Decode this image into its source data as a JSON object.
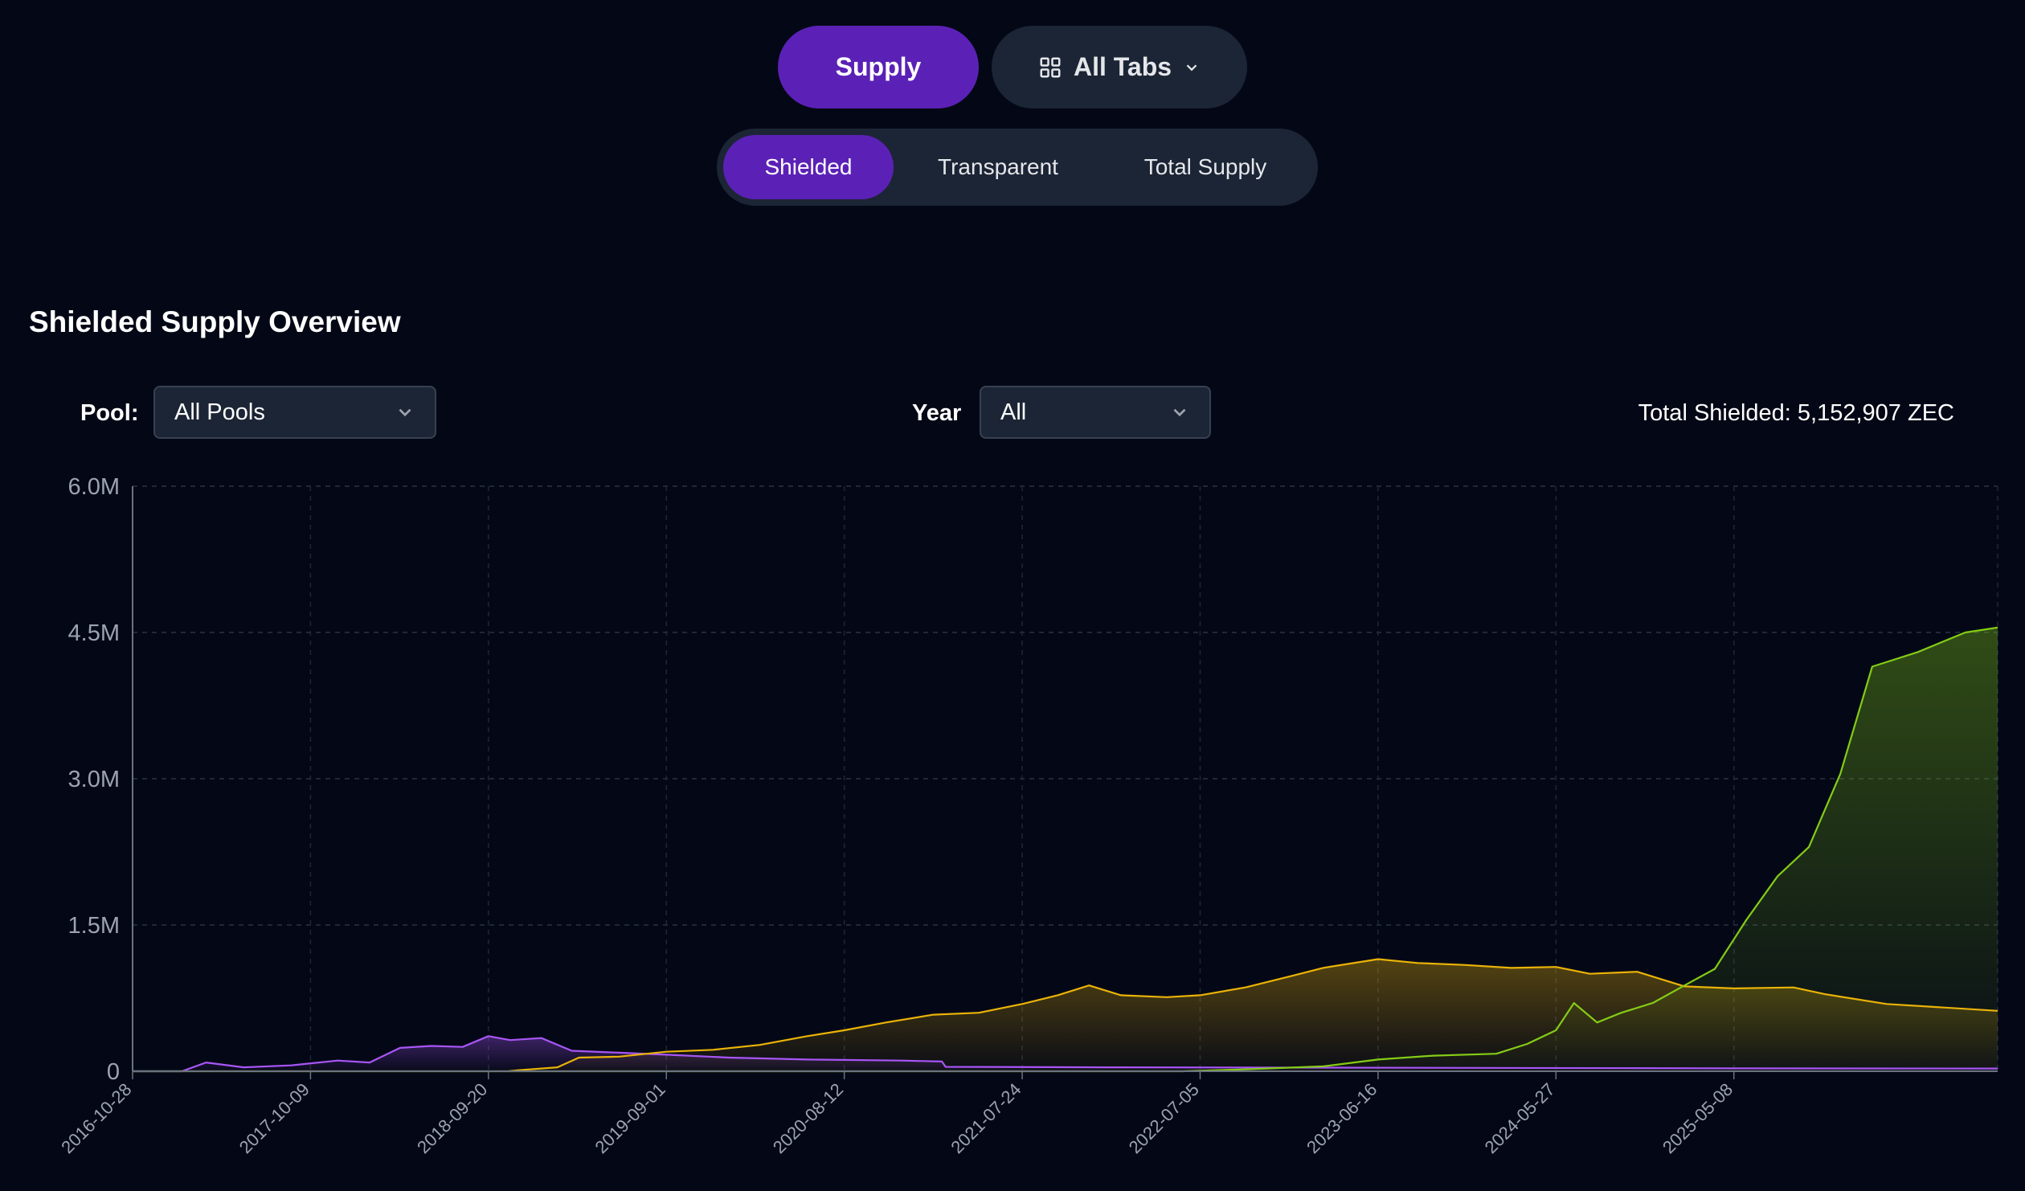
{
  "nav": {
    "supply_label": "Supply",
    "all_tabs_label": "All Tabs",
    "all_tabs_icon": "grid-icon",
    "dropdown_icon": "chevron-down-icon"
  },
  "subtabs": [
    {
      "label": "Shielded",
      "active": true
    },
    {
      "label": "Transparent",
      "active": false
    },
    {
      "label": "Total Supply",
      "active": false
    }
  ],
  "section": {
    "title": "Shielded Supply Overview"
  },
  "filters": {
    "pool_label": "Pool:",
    "pool_value": "All Pools",
    "year_label": "Year",
    "year_value": "All"
  },
  "total_shielded": "Total Shielded: 5,152,907 ZEC",
  "colors": {
    "accent": "#5b21b6",
    "sprout": "#a855f7",
    "sapling": "#eab308",
    "orchard": "#84cc16"
  },
  "chart_data": {
    "type": "area",
    "ylim": [
      0,
      6000000
    ],
    "y_ticks": [
      {
        "value": 0,
        "label": "0"
      },
      {
        "value": 1500000,
        "label": "1.5M"
      },
      {
        "value": 3000000,
        "label": "3.0M"
      },
      {
        "value": 4500000,
        "label": "4.5M"
      },
      {
        "value": 6000000,
        "label": "6.0M"
      }
    ],
    "x_range": [
      "2016-10-28",
      "2026-10-03"
    ],
    "x_ticks": [
      "2016-10-28",
      "2017-10-09",
      "2018-09-20",
      "2019-09-01",
      "2020-08-12",
      "2021-07-24",
      "2022-07-05",
      "2023-06-16",
      "2024-05-27",
      "2025-05-08"
    ],
    "series": [
      {
        "color": "#a855f7",
        "points": [
          [
            "2016-10-28",
            0
          ],
          [
            "2017-02-01",
            0
          ],
          [
            "2017-03-20",
            90000
          ],
          [
            "2017-06-01",
            40000
          ],
          [
            "2017-09-01",
            60000
          ],
          [
            "2017-12-01",
            110000
          ],
          [
            "2018-02-01",
            90000
          ],
          [
            "2018-04-01",
            240000
          ],
          [
            "2018-06-01",
            260000
          ],
          [
            "2018-08-01",
            250000
          ],
          [
            "2018-09-20",
            360000
          ],
          [
            "2018-11-01",
            320000
          ],
          [
            "2019-01-01",
            340000
          ],
          [
            "2019-03-01",
            210000
          ],
          [
            "2019-06-01",
            190000
          ],
          [
            "2019-09-01",
            170000
          ],
          [
            "2020-01-01",
            140000
          ],
          [
            "2020-06-01",
            120000
          ],
          [
            "2020-12-01",
            110000
          ],
          [
            "2021-02-18",
            100000
          ],
          [
            "2021-02-25",
            45000
          ],
          [
            "2022-01-01",
            40000
          ],
          [
            "2024-01-01",
            35000
          ],
          [
            "2025-06-01",
            30000
          ],
          [
            "2026-10-03",
            28000
          ]
        ]
      },
      {
        "color": "#eab308",
        "points": [
          [
            "2018-10-29",
            0
          ],
          [
            "2018-11-15",
            10000
          ],
          [
            "2019-02-01",
            40000
          ],
          [
            "2019-03-15",
            140000
          ],
          [
            "2019-06-01",
            150000
          ],
          [
            "2019-09-01",
            200000
          ],
          [
            "2019-12-01",
            220000
          ],
          [
            "2020-03-01",
            270000
          ],
          [
            "2020-06-01",
            360000
          ],
          [
            "2020-08-12",
            420000
          ],
          [
            "2020-11-01",
            500000
          ],
          [
            "2021-02-01",
            580000
          ],
          [
            "2021-05-01",
            600000
          ],
          [
            "2021-07-24",
            690000
          ],
          [
            "2021-10-01",
            780000
          ],
          [
            "2021-12-01",
            880000
          ],
          [
            "2022-02-01",
            780000
          ],
          [
            "2022-05-01",
            760000
          ],
          [
            "2022-07-05",
            780000
          ],
          [
            "2022-10-01",
            860000
          ],
          [
            "2023-01-01",
            980000
          ],
          [
            "2023-03-01",
            1060000
          ],
          [
            "2023-06-16",
            1150000
          ],
          [
            "2023-09-01",
            1110000
          ],
          [
            "2023-12-01",
            1090000
          ],
          [
            "2024-03-01",
            1060000
          ],
          [
            "2024-05-27",
            1070000
          ],
          [
            "2024-08-01",
            1000000
          ],
          [
            "2024-11-01",
            1020000
          ],
          [
            "2025-02-01",
            870000
          ],
          [
            "2025-05-08",
            850000
          ],
          [
            "2025-09-01",
            860000
          ],
          [
            "2025-11-01",
            790000
          ],
          [
            "2026-03-01",
            690000
          ],
          [
            "2026-10-03",
            620000
          ]
        ]
      },
      {
        "color": "#84cc16",
        "points": [
          [
            "2016-10-28",
            0
          ],
          [
            "2022-05-31",
            0
          ],
          [
            "2022-10-01",
            20000
          ],
          [
            "2023-03-01",
            50000
          ],
          [
            "2023-06-16",
            120000
          ],
          [
            "2023-10-01",
            160000
          ],
          [
            "2024-02-01",
            180000
          ],
          [
            "2024-04-01",
            280000
          ],
          [
            "2024-05-27",
            420000
          ],
          [
            "2024-07-01",
            700000
          ],
          [
            "2024-08-15",
            500000
          ],
          [
            "2024-10-01",
            600000
          ],
          [
            "2024-12-01",
            700000
          ],
          [
            "2025-02-01",
            880000
          ],
          [
            "2025-04-01",
            1050000
          ],
          [
            "2025-06-01",
            1550000
          ],
          [
            "2025-08-01",
            2000000
          ],
          [
            "2025-10-01",
            2300000
          ],
          [
            "2025-12-01",
            3050000
          ],
          [
            "2026-02-01",
            4150000
          ],
          [
            "2026-05-01",
            4300000
          ],
          [
            "2026-08-01",
            4500000
          ],
          [
            "2026-10-03",
            4550000
          ]
        ]
      }
    ]
  }
}
